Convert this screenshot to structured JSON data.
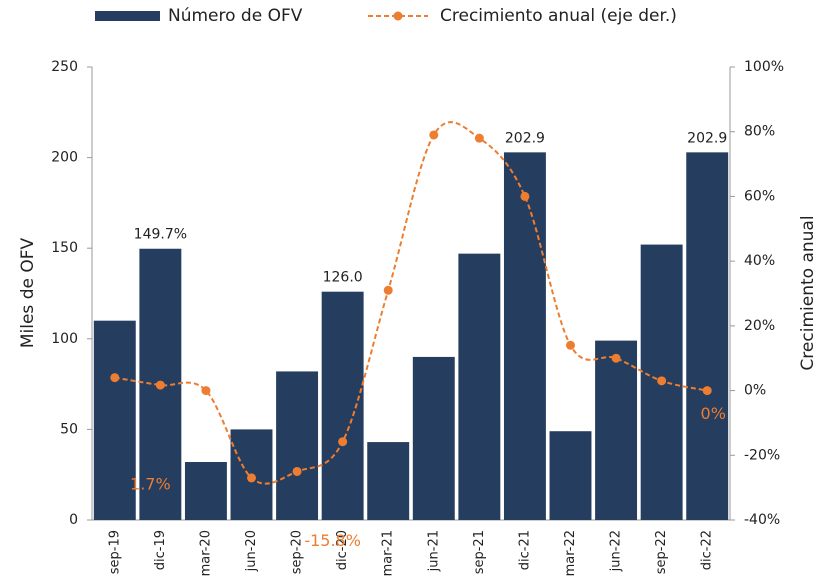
{
  "chart_data": {
    "type": "bar_line",
    "categories": [
      "sep-19",
      "dic-19",
      "mar-20",
      "jun-20",
      "sep-20",
      "dic-20",
      "mar-21",
      "jun-21",
      "sep-21",
      "dic-21",
      "mar-22",
      "jun-22",
      "sep-22",
      "dic-22"
    ],
    "series": [
      {
        "name": "Número de OFV",
        "type": "bar",
        "color": "#253d5e",
        "values": [
          110,
          149.7,
          32,
          50,
          82,
          126.0,
          43,
          90,
          147,
          202.9,
          49,
          99,
          152,
          202.9
        ],
        "value_labels": [
          null,
          "149.7%",
          null,
          null,
          null,
          "126.0",
          null,
          null,
          null,
          "202.9",
          null,
          null,
          null,
          "202.9"
        ]
      },
      {
        "name": "Crecimiento anual (eje der.)",
        "type": "line",
        "axis": "y2",
        "color": "#ed7d31",
        "values": [
          4,
          1.7,
          0,
          -27,
          -25,
          -15.8,
          31,
          79,
          78,
          60,
          14,
          10,
          3,
          0
        ],
        "value_labels": [
          null,
          "1.7%",
          null,
          null,
          null,
          "-15.8%",
          null,
          null,
          null,
          null,
          null,
          null,
          null,
          "0%"
        ]
      }
    ],
    "ylabel": "Miles de OFV",
    "y2label": "Crecimiento anual",
    "ylim": [
      0,
      250
    ],
    "yticks": [
      0,
      50,
      100,
      150,
      200,
      250
    ],
    "y2lim": [
      -40,
      100
    ],
    "y2ticks": [
      {
        "value": -40,
        "label": "-40%"
      },
      {
        "value": -20,
        "label": "-20%"
      },
      {
        "value": 0,
        "label": "0%"
      },
      {
        "value": 20,
        "label": "20%"
      },
      {
        "value": 40,
        "label": "40%"
      },
      {
        "value": 60,
        "label": "60%"
      },
      {
        "value": 80,
        "label": "80%"
      },
      {
        "value": 100,
        "label": "100%"
      }
    ],
    "legend": "top"
  }
}
